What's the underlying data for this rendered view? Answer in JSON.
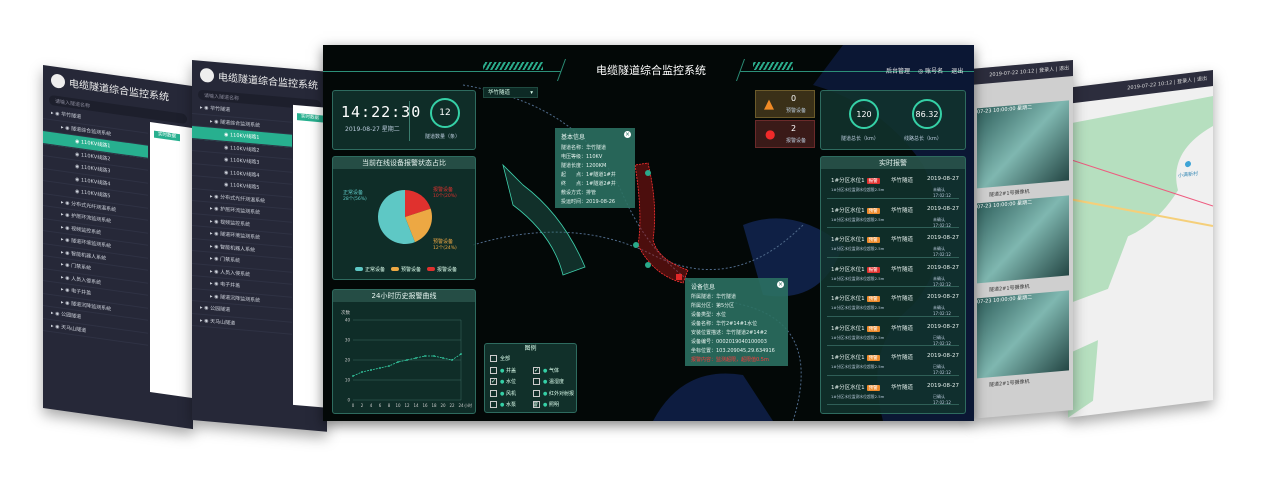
{
  "app_title": "电缆隧道综合监控系统",
  "back_screens": {
    "search_placeholder": "请输入隧道名称",
    "tree_a": [
      {
        "label": "华竹隧道",
        "level": 0
      },
      {
        "label": "隧道综合监测系统",
        "level": 1
      },
      {
        "label": "110KV线路1",
        "level": 2,
        "selected": true
      },
      {
        "label": "110KV线路2",
        "level": 2
      },
      {
        "label": "110KV线路3",
        "level": 2
      },
      {
        "label": "110KV线路4",
        "level": 2
      },
      {
        "label": "110KV线路5",
        "level": 2
      },
      {
        "label": "分布式光纤测温系统",
        "level": 1
      },
      {
        "label": "护层环流监测系统",
        "level": 1
      },
      {
        "label": "视频监控系统",
        "level": 1
      },
      {
        "label": "隧道环境监测系统",
        "level": 1
      },
      {
        "label": "智能机器人系统",
        "level": 1
      },
      {
        "label": "门禁系统",
        "level": 1
      },
      {
        "label": "人员入侵系统",
        "level": 1
      },
      {
        "label": "电子井盖",
        "level": 1
      },
      {
        "label": "隧道沉降监测系统",
        "level": 1
      },
      {
        "label": "公园隧道",
        "level": 0
      },
      {
        "label": "天马山隧道",
        "level": 0
      }
    ],
    "content_tab": "实时数据",
    "right1_header": "2019-07-22  10:12 | 登录人 | 退出",
    "right2_header": "2019-07-22  10:12 | 登录人 | 退出",
    "camera_labels": [
      "隧道2#1号摄像机",
      "隧道2#1号摄像机",
      "隧道2#1号摄像机"
    ],
    "camera_overlay": "07-23 10:00:00 星期二",
    "map_poi": "小满新村"
  },
  "header": {
    "title": "电缆隧道综合监控系统",
    "admin": "后台管理",
    "account": "账号名",
    "logout": "退出"
  },
  "clock": {
    "time": "14:22:30",
    "date": "2019-08-27  星期二",
    "tunnel_count": "12",
    "tunnel_count_label": "隧道数量（条）"
  },
  "tunnel_select": "华竹隧道",
  "pie": {
    "title": "当前在线设备报警状态占比",
    "chart_data": {
      "type": "pie",
      "slices": [
        {
          "name": "正常设备",
          "label": "正常设备",
          "value_label": "28个(56%)",
          "value": 56,
          "color": "#5ec8c5"
        },
        {
          "name": "预警设备",
          "label": "预警设备",
          "value_label": "12个(24%)",
          "value": 24,
          "color": "#eda843"
        },
        {
          "name": "报警设备",
          "label": "报警设备",
          "value_label": "10个(20%)",
          "value": 20,
          "color": "#e0312e"
        }
      ]
    }
  },
  "line": {
    "title": "24小时历史报警曲线",
    "chart_data": {
      "type": "line",
      "ylabel": "次数",
      "xlabel": "小时",
      "ylim": [
        0,
        40
      ],
      "yticks": [
        "0",
        "10",
        "20",
        "30",
        "40"
      ],
      "xticks": [
        "0",
        "2",
        "4",
        "6",
        "8",
        "10",
        "12",
        "14",
        "16",
        "18",
        "20",
        "22",
        "24"
      ],
      "x": [
        0,
        2,
        4,
        6,
        8,
        10,
        12,
        14,
        16,
        18,
        20,
        22,
        24
      ],
      "y": [
        12,
        14,
        15,
        16,
        17,
        19,
        20,
        21,
        22,
        22,
        21,
        20,
        23
      ],
      "color": "#35d0a6"
    }
  },
  "alerts_top": {
    "warning_count": "0",
    "warning_label": "预警设备",
    "alarm_count": "2",
    "alarm_label": "报警设备"
  },
  "stats": {
    "tunnel_length": "120",
    "tunnel_length_label": "隧道总长（km）",
    "line_length": "86.32",
    "line_length_label": "线路总长（km）"
  },
  "realtime": {
    "title": "实时报警",
    "items": [
      {
        "name": "1#分区水位1",
        "level": "报警",
        "tunnel": "华竹隧道",
        "date": "2019-08-27",
        "desc": "1#分区水位监测水位超限2.5m",
        "status": "未确认",
        "time": "17:02:12",
        "color": "#e0312e"
      },
      {
        "name": "1#分区水位1",
        "level": "预警",
        "tunnel": "华竹隧道",
        "date": "2019-08-27",
        "desc": "1#分区水位监测水位超限2.5m",
        "status": "未确认",
        "time": "17:02:12",
        "color": "#ee8a2a"
      },
      {
        "name": "1#分区水位1",
        "level": "预警",
        "tunnel": "华竹隧道",
        "date": "2019-08-27",
        "desc": "1#分区水位监测水位超限2.5m",
        "status": "未确认",
        "time": "17:02:12",
        "color": "#ee8a2a"
      },
      {
        "name": "1#分区水位1",
        "level": "报警",
        "tunnel": "华竹隧道",
        "date": "2019-08-27",
        "desc": "1#分区水位监测水位超限2.5m",
        "status": "未确认",
        "time": "17:02:12",
        "color": "#e0312e"
      },
      {
        "name": "1#分区水位1",
        "level": "预警",
        "tunnel": "华竹隧道",
        "date": "2019-08-27",
        "desc": "1#分区水位监测水位超限2.5m",
        "status": "未确认",
        "time": "17:02:12",
        "color": "#ee8a2a"
      },
      {
        "name": "1#分区水位1",
        "level": "预警",
        "tunnel": "华竹隧道",
        "date": "2019-08-27",
        "desc": "1#分区水位监测水位超限2.5m",
        "status": "已确认",
        "time": "17:02:12",
        "color": "#ee8a2a"
      },
      {
        "name": "1#分区水位1",
        "level": "预警",
        "tunnel": "华竹隧道",
        "date": "2019-08-27",
        "desc": "1#分区水位监测水位超限2.5m",
        "status": "已确认",
        "time": "17:02:12",
        "color": "#ee8a2a"
      },
      {
        "name": "1#分区水位1",
        "level": "预警",
        "tunnel": "华竹隧道",
        "date": "2019-08-27",
        "desc": "1#分区水位监测水位超限2.5m",
        "status": "已确认",
        "time": "17:02:12",
        "color": "#ee8a2a"
      }
    ]
  },
  "basic_info": {
    "title": "基本信息",
    "rows": [
      "隧道名称：华竹隧道",
      "电压等级：110KV",
      "隧道长度：1200KM",
      "起　　点：1#隧道1#井",
      "终　　点：1#隧道2#井",
      "敷设方式：排管",
      "投运时间：2019-08-26"
    ]
  },
  "device_info": {
    "title": "设备信息",
    "rows": [
      "所属隧道：华竹隧道",
      "所属分区：第5分区",
      "设备类型：水位",
      "设备名称：华竹2#14#1水位",
      "安装位置描述：华竹隧道2#14#2",
      "设备编号：0002019040100003",
      "坐标位置：103.209045,29.634916"
    ],
    "alarm_row": "报警内容：监测超限，超限值0.5m",
    "alarm_color": "#ff3b3b"
  },
  "legend": {
    "title": "图例",
    "all": "全部",
    "items": [
      {
        "label": "井盖",
        "checked": false
      },
      {
        "label": "气体",
        "checked": true
      },
      {
        "label": "水位",
        "checked": true
      },
      {
        "label": "温湿度",
        "checked": false
      },
      {
        "label": "风机",
        "checked": false
      },
      {
        "label": "红外对射报警",
        "checked": false
      },
      {
        "label": "水泵",
        "checked": false
      },
      {
        "label": "照明",
        "checked": false
      }
    ]
  },
  "colors": {
    "accent": "#35d0a6",
    "panel": "#12342e",
    "background": "#030807",
    "sidebar": "#262838",
    "selected": "#27b08f"
  }
}
